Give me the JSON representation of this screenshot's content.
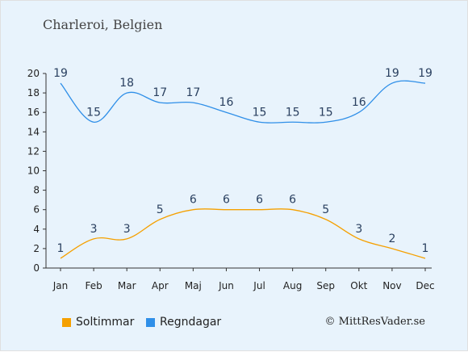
{
  "title": "Charleroi, Belgien",
  "copyright": "© MittResVader.se",
  "chart_data": {
    "type": "line",
    "categories": [
      "Jan",
      "Feb",
      "Mar",
      "Apr",
      "Maj",
      "Jun",
      "Jul",
      "Aug",
      "Sep",
      "Okt",
      "Nov",
      "Dec"
    ],
    "series": [
      {
        "name": "Soltimmar",
        "color": "#f5a000",
        "values": [
          1,
          3,
          3,
          5,
          6,
          6,
          6,
          6,
          5,
          3,
          2,
          1
        ]
      },
      {
        "name": "Regndagar",
        "color": "#2f8fe8",
        "values": [
          19,
          15,
          18,
          17,
          17,
          16,
          15,
          15,
          15,
          16,
          19,
          19
        ]
      }
    ],
    "ylim": [
      0,
      20
    ],
    "yticks": [
      0,
      2,
      4,
      6,
      8,
      10,
      12,
      14,
      16,
      18,
      20
    ],
    "grid": false,
    "legend_position": "bottom-left"
  }
}
